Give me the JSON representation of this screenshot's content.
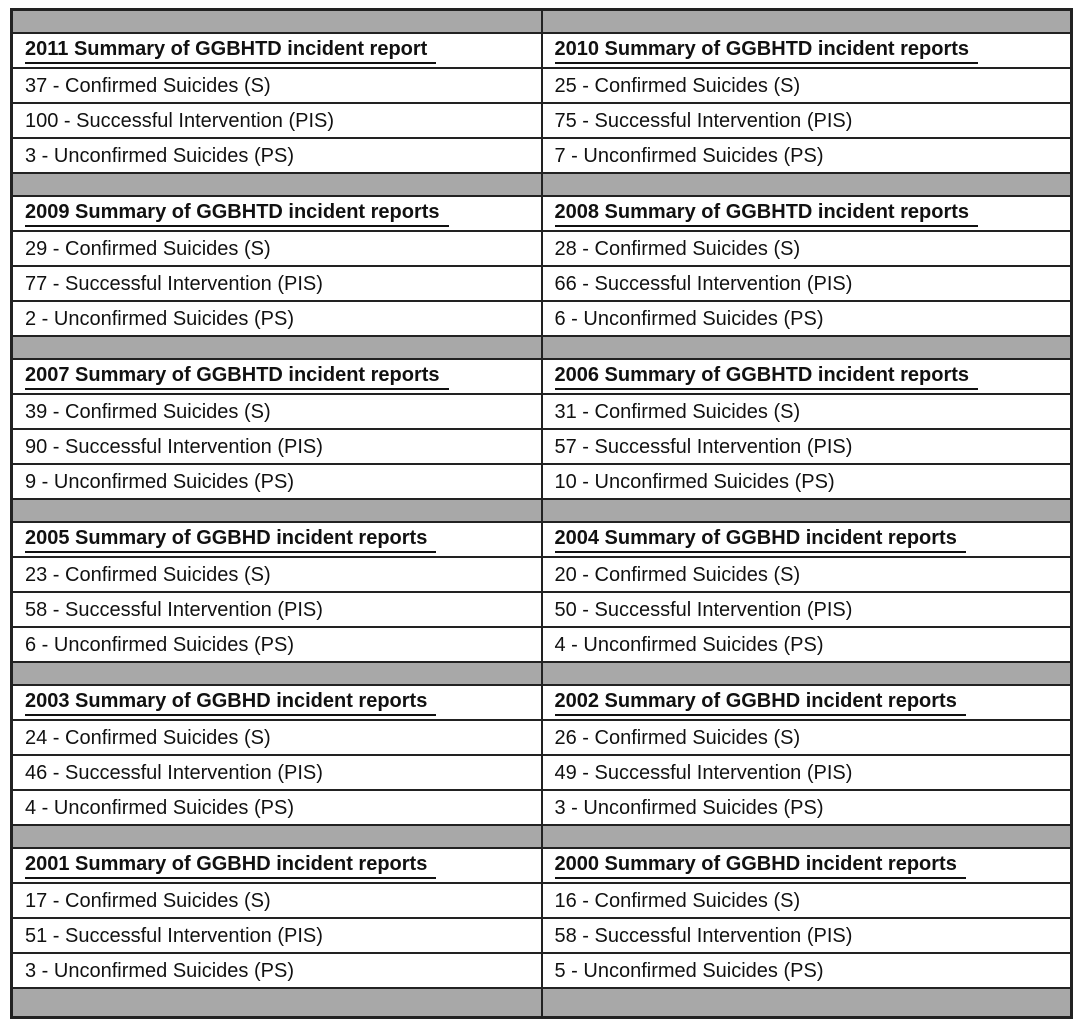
{
  "colors": {
    "separator_fill": "#a8a8a8",
    "border": "#222222",
    "text": "#111111",
    "background": "#ffffff"
  },
  "table": {
    "columns": 2,
    "blocks": [
      {
        "left": {
          "title": "2011 Summary of GGBHTD incident report",
          "rows": [
            "37 - Confirmed Suicides (S)",
            "100 - Successful Intervention (PIS)",
            "3 - Unconfirmed Suicides (PS)"
          ]
        },
        "right": {
          "title": "2010 Summary of GGBHTD incident reports",
          "rows": [
            "25 - Confirmed Suicides (S)",
            "75 - Successful Intervention (PIS)",
            "7 - Unconfirmed Suicides (PS)"
          ]
        }
      },
      {
        "left": {
          "title": "2009 Summary of GGBHTD incident reports",
          "rows": [
            "29 - Confirmed Suicides (S)",
            "77 - Successful Intervention (PIS)",
            "2 - Unconfirmed Suicides (PS)"
          ]
        },
        "right": {
          "title": "2008 Summary of GGBHTD incident reports",
          "rows": [
            "28 - Confirmed Suicides (S)",
            "66 - Successful Intervention (PIS)",
            "6 - Unconfirmed Suicides (PS)"
          ]
        }
      },
      {
        "left": {
          "title": "2007 Summary of GGBHTD incident reports",
          "rows": [
            "39 - Confirmed Suicides (S)",
            "90 - Successful Intervention (PIS)",
            "9 - Unconfirmed Suicides (PS)"
          ]
        },
        "right": {
          "title": "2006 Summary of GGBHTD incident reports",
          "rows": [
            "31 - Confirmed Suicides (S)",
            "57 - Successful Intervention (PIS)",
            "10 - Unconfirmed Suicides (PS)"
          ]
        }
      },
      {
        "left": {
          "title": "2005 Summary of GGBHD incident reports",
          "rows": [
            "23 - Confirmed Suicides (S)",
            "58 - Successful Intervention (PIS)",
            "6 - Unconfirmed Suicides (PS)"
          ]
        },
        "right": {
          "title": "2004 Summary of GGBHD incident reports",
          "rows": [
            "20 - Confirmed Suicides (S)",
            "50 - Successful Intervention (PIS)",
            "4 - Unconfirmed Suicides (PS)"
          ]
        }
      },
      {
        "left": {
          "title": "2003 Summary of GGBHD incident reports",
          "rows": [
            "24 - Confirmed Suicides (S)",
            "46 - Successful Intervention (PIS)",
            "4 - Unconfirmed Suicides (PS)"
          ]
        },
        "right": {
          "title": "2002 Summary of GGBHD incident reports",
          "rows": [
            "26 - Confirmed Suicides (S)",
            "49 - Successful Intervention (PIS)",
            "3 - Unconfirmed Suicides (PS)"
          ]
        }
      },
      {
        "left": {
          "title": "2001 Summary of GGBHD incident reports",
          "rows": [
            "17 - Confirmed Suicides (S)",
            "51 - Successful Intervention (PIS)",
            "3 - Unconfirmed Suicides (PS)"
          ]
        },
        "right": {
          "title": "2000 Summary of GGBHD incident reports",
          "rows": [
            "16 - Confirmed Suicides (S)",
            "58 - Successful Intervention (PIS)",
            "5 - Unconfirmed Suicides (PS)"
          ]
        }
      }
    ]
  },
  "years_summary": [
    {
      "year": 2011,
      "agency": "GGBHTD",
      "confirmed_suicides": 37,
      "successful_interventions": 100,
      "unconfirmed_suicides": 3
    },
    {
      "year": 2010,
      "agency": "GGBHTD",
      "confirmed_suicides": 25,
      "successful_interventions": 75,
      "unconfirmed_suicides": 7
    },
    {
      "year": 2009,
      "agency": "GGBHTD",
      "confirmed_suicides": 29,
      "successful_interventions": 77,
      "unconfirmed_suicides": 2
    },
    {
      "year": 2008,
      "agency": "GGBHTD",
      "confirmed_suicides": 28,
      "successful_interventions": 66,
      "unconfirmed_suicides": 6
    },
    {
      "year": 2007,
      "agency": "GGBHTD",
      "confirmed_suicides": 39,
      "successful_interventions": 90,
      "unconfirmed_suicides": 9
    },
    {
      "year": 2006,
      "agency": "GGBHTD",
      "confirmed_suicides": 31,
      "successful_interventions": 57,
      "unconfirmed_suicides": 10
    },
    {
      "year": 2005,
      "agency": "GGBHD",
      "confirmed_suicides": 23,
      "successful_interventions": 58,
      "unconfirmed_suicides": 6
    },
    {
      "year": 2004,
      "agency": "GGBHD",
      "confirmed_suicides": 20,
      "successful_interventions": 50,
      "unconfirmed_suicides": 4
    },
    {
      "year": 2003,
      "agency": "GGBHD",
      "confirmed_suicides": 24,
      "successful_interventions": 46,
      "unconfirmed_suicides": 4
    },
    {
      "year": 2002,
      "agency": "GGBHD",
      "confirmed_suicides": 26,
      "successful_interventions": 49,
      "unconfirmed_suicides": 3
    },
    {
      "year": 2001,
      "agency": "GGBHD",
      "confirmed_suicides": 17,
      "successful_interventions": 51,
      "unconfirmed_suicides": 3
    },
    {
      "year": 2000,
      "agency": "GGBHD",
      "confirmed_suicides": 16,
      "successful_interventions": 58,
      "unconfirmed_suicides": 5
    }
  ]
}
